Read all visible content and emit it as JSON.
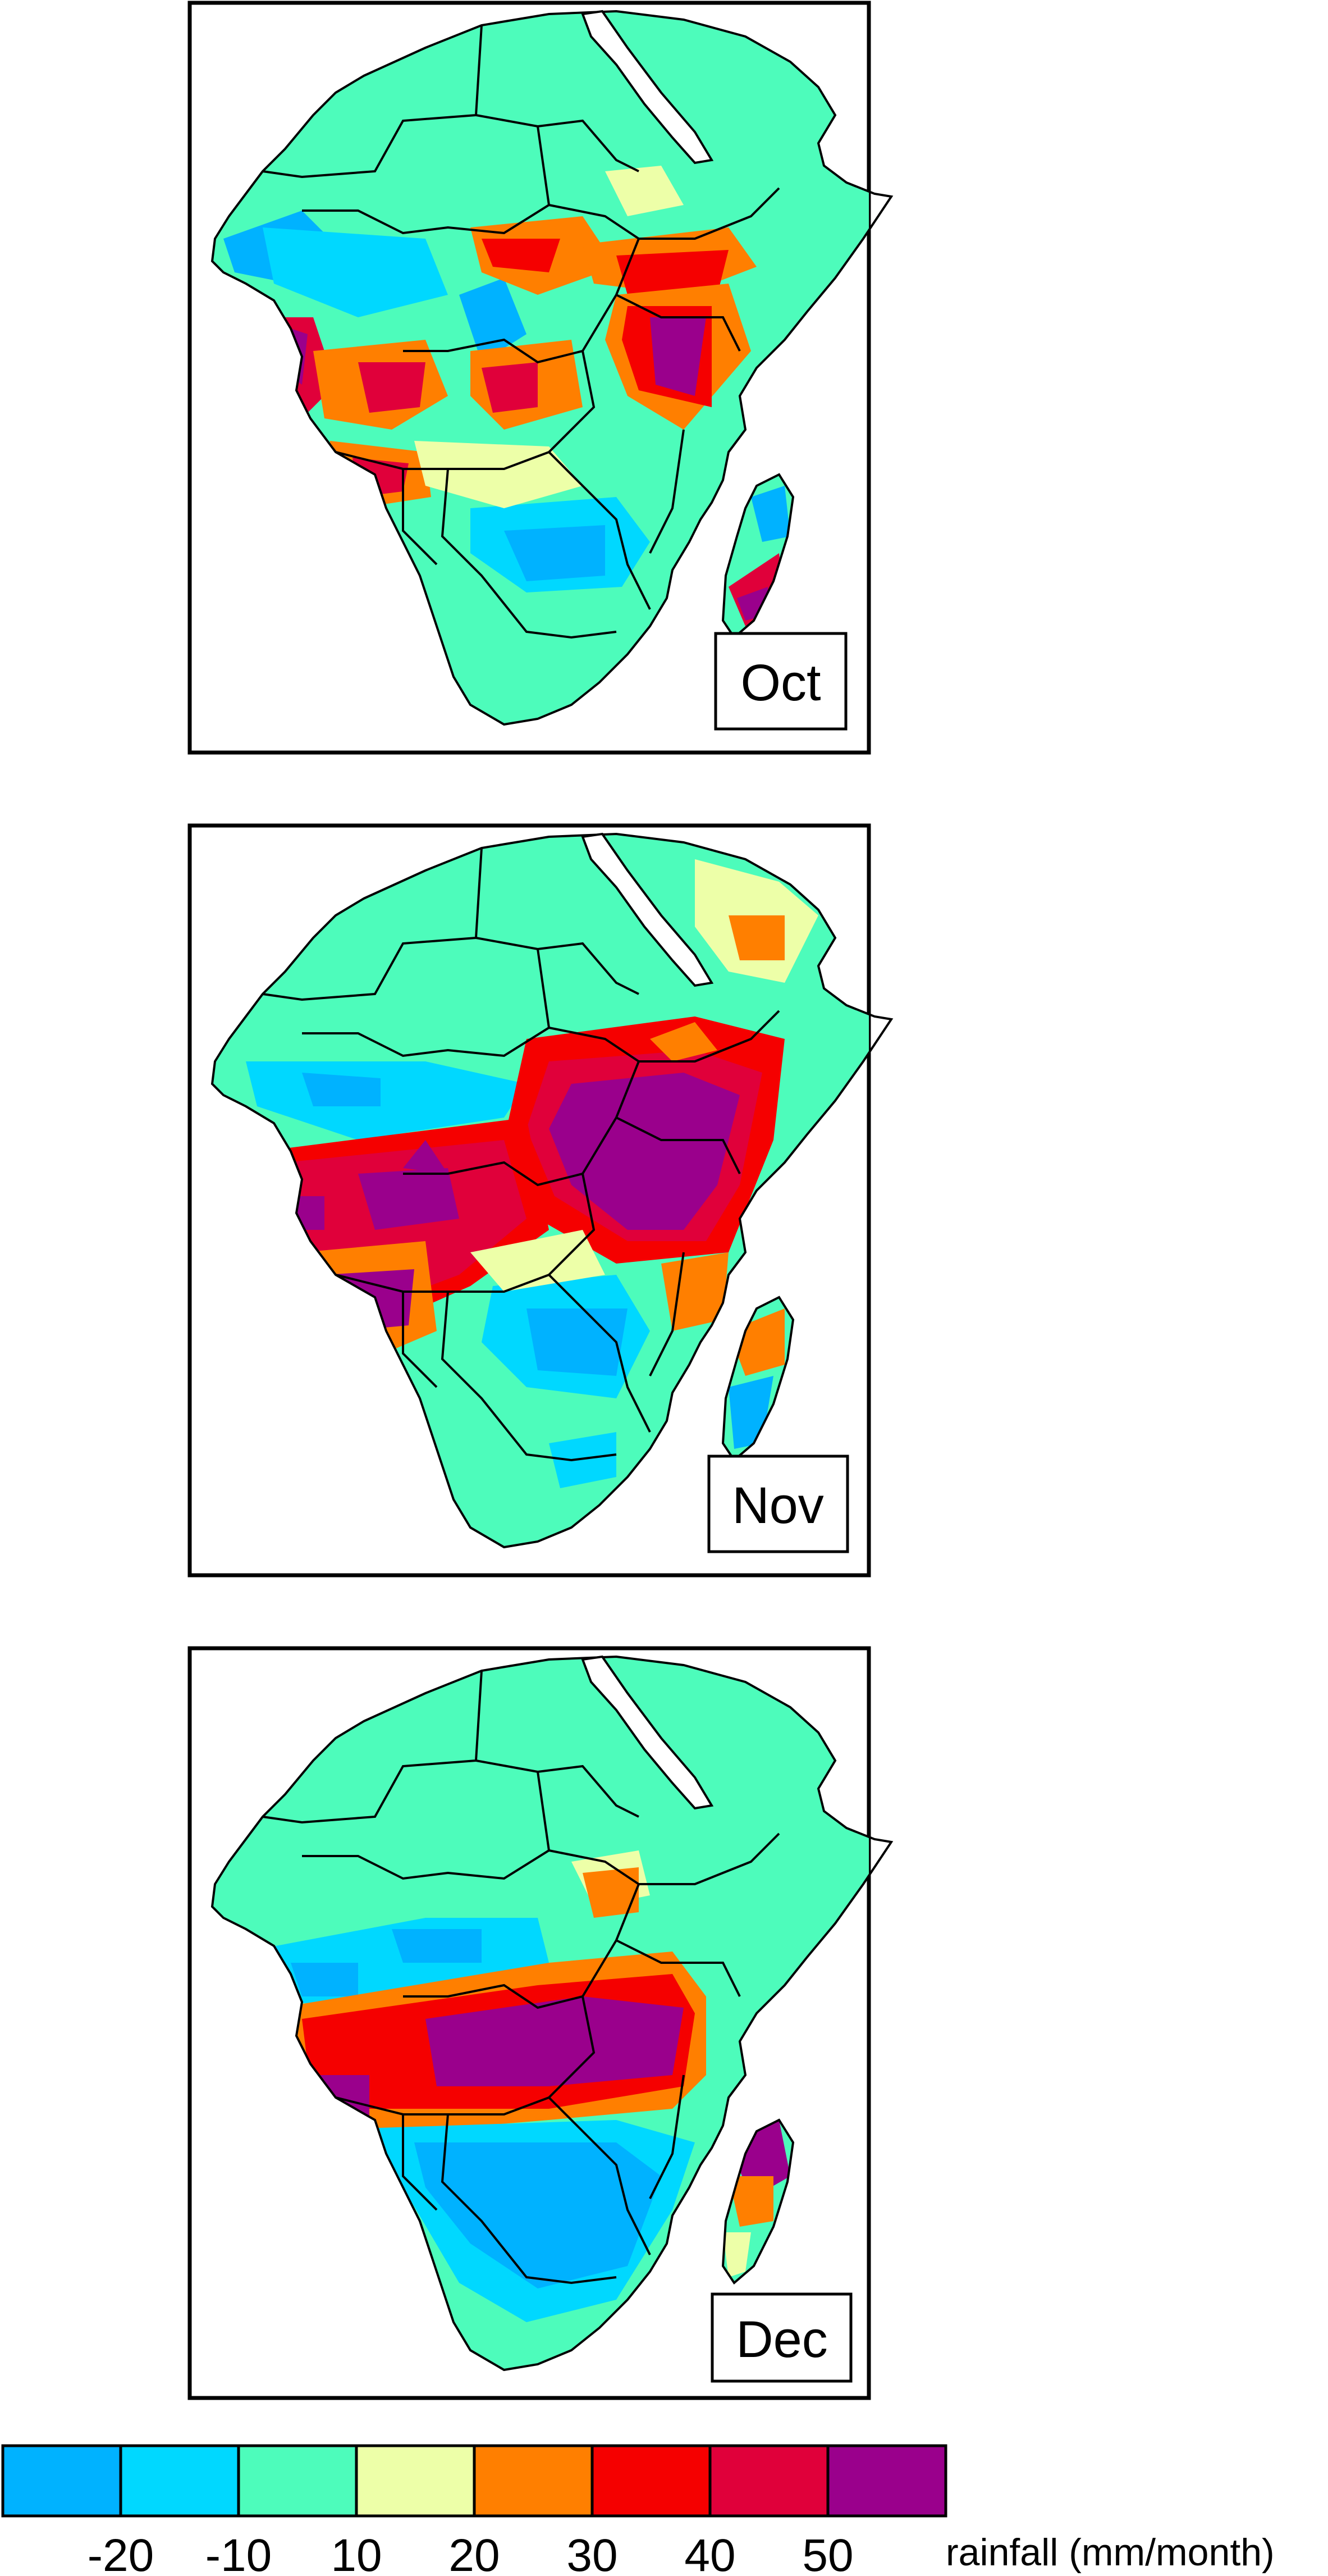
{
  "figure": {
    "panels": [
      {
        "label": "Oct"
      },
      {
        "label": "Nov"
      },
      {
        "label": "Dec"
      }
    ]
  },
  "legend": {
    "title": "rainfall (mm/month)",
    "tick_labels": [
      "-20",
      "-10",
      "10",
      "20",
      "30",
      "40",
      "50"
    ],
    "bins": [
      {
        "color": "#00b2ff"
      },
      {
        "color": "#00d8ff"
      },
      {
        "color": "#4dfcbb"
      },
      {
        "color": "#edffa8"
      },
      {
        "color": "#ff7f00"
      },
      {
        "color": "#f50000"
      },
      {
        "color": "#e0003a"
      },
      {
        "color": "#9a008c"
      }
    ]
  },
  "colors": {
    "background_land": "#4dfcbb",
    "sea": "#ffffff",
    "border": "#000000"
  }
}
